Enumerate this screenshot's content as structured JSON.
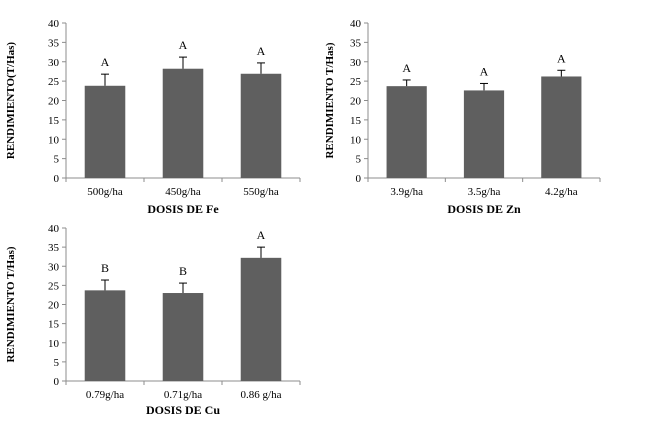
{
  "chart_data": [
    {
      "type": "bar",
      "categories": [
        "500g/ha",
        "450g/ha",
        "550g/ha"
      ],
      "values": [
        23.8,
        28.2,
        26.9
      ],
      "errors": [
        3.0,
        3.0,
        2.8
      ],
      "letters": [
        "A",
        "A",
        "A"
      ],
      "xlabel": "DOSIS DE Fe",
      "ylabel": "RENDIMIENTO(T/Has)",
      "ylim": [
        0,
        40
      ],
      "yticks": [
        "0",
        "5",
        "10",
        "15",
        "20",
        "25",
        "30",
        "35",
        "40"
      ],
      "bar_color": "#5f5f5f",
      "grid": false
    },
    {
      "type": "bar",
      "categories": [
        "3.9g/ha",
        "3.5g/ha",
        "4.2g/ha"
      ],
      "values": [
        23.7,
        22.6,
        26.2
      ],
      "errors": [
        1.6,
        1.8,
        1.6
      ],
      "letters": [
        "A",
        "A",
        "A"
      ],
      "xlabel": "DOSIS DE Zn",
      "ylabel": "RENDIMIENTO T/Has)",
      "ylim": [
        0,
        40
      ],
      "yticks": [
        "0",
        "5",
        "10",
        "15",
        "20",
        "25",
        "30",
        "35",
        "40"
      ],
      "bar_color": "#5f5f5f",
      "grid": false
    },
    {
      "type": "bar",
      "categories": [
        "0.79g/ha",
        "0.71g/ha",
        "0.86 g/ha"
      ],
      "values": [
        23.7,
        23.0,
        32.2
      ],
      "errors": [
        2.7,
        2.6,
        2.8
      ],
      "letters": [
        "B",
        "B",
        "A"
      ],
      "xlabel": "DOSIS DE Cu",
      "ylabel": "RENDIMIENTO T/Has)",
      "ylim": [
        0,
        40
      ],
      "yticks": [
        "0",
        "5",
        "10",
        "15",
        "20",
        "25",
        "30",
        "35",
        "40"
      ],
      "bar_color": "#5f5f5f",
      "grid": false
    }
  ]
}
